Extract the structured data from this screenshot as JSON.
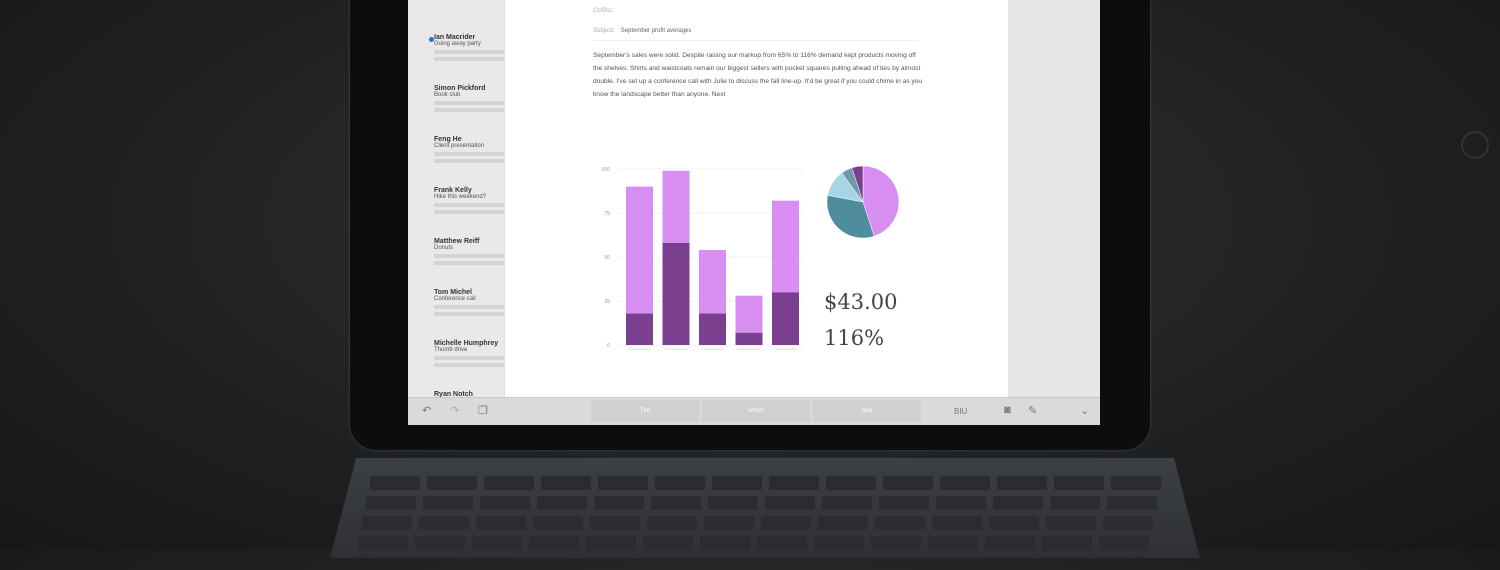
{
  "mail_list": [
    {
      "from": "Ian Macrider",
      "subject": "Going away party",
      "unread": true
    },
    {
      "from": "Simon Pickford",
      "subject": "Book club"
    },
    {
      "from": "Feng He",
      "subject": "Client presentation"
    },
    {
      "from": "Frank Kelly",
      "subject": "Hike this weekend?"
    },
    {
      "from": "Matthew Reiff",
      "subject": "Donuts"
    },
    {
      "from": "Tom Michel",
      "subject": "Conference call"
    },
    {
      "from": "Michelle Humphrey",
      "subject": "Thumb drive"
    },
    {
      "from": "Ryan Notch",
      "subject": ""
    }
  ],
  "compose": {
    "cc_label": "Cc/Bcc:",
    "subject_label": "Subject:",
    "subject": "September profit averages",
    "body": "September's sales were solid. Despite raising our markup from 65% to 116% demand kept products moving off the shelves. Shirts and waistcoats remain our biggest sellers with pocket squares pulling ahead of ties by almost double. I've set up a conference call with Julie to discuss the fall line-up. It'd be great if you could chime in as you know the landscape better than anyone. Next"
  },
  "stats": {
    "avg_value": "$43.00",
    "avg_markup": "116%"
  },
  "toolbar": {
    "suggestions": [
      "The",
      "which",
      "and"
    ],
    "format_label": "BIU"
  },
  "colors": {
    "light_purple": "#d88ef0",
    "dark_purple": "#7a3f8e",
    "teal": "#4f8c9e",
    "light_blue": "#a6d6e6"
  },
  "chart_data": [
    {
      "type": "bar",
      "stacked": true,
      "yticks": [
        0,
        25,
        50,
        75,
        100
      ],
      "ylim": [
        0,
        100
      ],
      "categories": [
        "",
        "",
        "",
        "",
        ""
      ],
      "series": [
        {
          "values": [
            18,
            58,
            18,
            7,
            30
          ]
        },
        {
          "values": [
            72,
            41,
            36,
            21,
            52
          ]
        }
      ]
    },
    {
      "type": "pie",
      "values": [
        45,
        33,
        12,
        5,
        5
      ]
    }
  ]
}
